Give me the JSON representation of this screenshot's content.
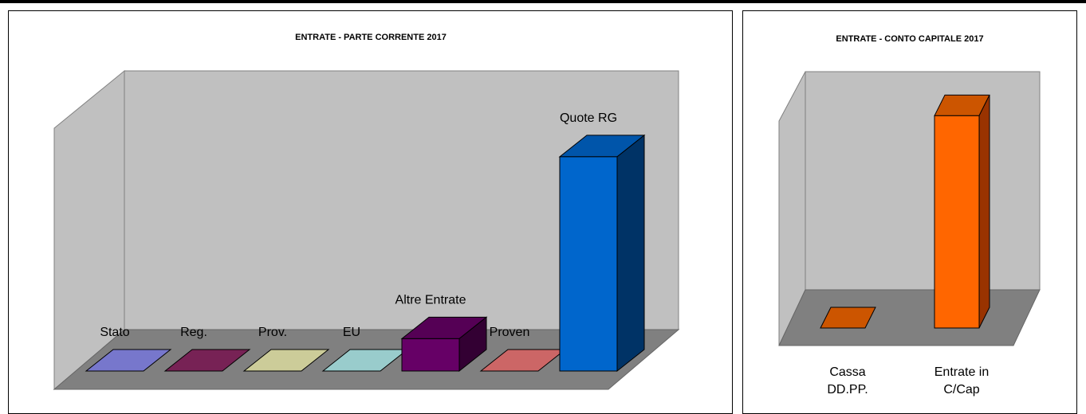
{
  "chart_data": [
    {
      "type": "bar",
      "title": "ENTRATE - PARTE CORRENTE 2017",
      "categories": [
        "Stato",
        "Reg.",
        "Prov.",
        "EU",
        "Altre Entrate",
        "Proven",
        "Quote  RG"
      ],
      "values": [
        0,
        0,
        0,
        0,
        46,
        0,
        305
      ],
      "ylim": [
        0,
        340
      ],
      "grid": false,
      "legend": "none",
      "colors": {
        "front": [
          "#7777cc",
          "#772255",
          "#cccc99",
          "#99cccc",
          "#660066",
          "#cc6666",
          "#0066cc"
        ],
        "top": [
          "#7777cc",
          "#772255",
          "#cccc99",
          "#99cccc",
          "#550055",
          "#cc6666",
          "#0055aa"
        ],
        "side": [
          "#555599",
          "#551133",
          "#999966",
          "#669999",
          "#330033",
          "#994444",
          "#003366"
        ],
        "wall": "#c0c0c0",
        "floor": "#808080"
      }
    },
    {
      "type": "bar",
      "title": "ENTRATE - CONTO CAPITALE 2017",
      "categories": [
        "Cassa DD.PP.",
        "Entrate in C/Cap"
      ],
      "category_lines": [
        [
          "Cassa",
          "DD.PP."
        ],
        [
          "Entrate in",
          "C/Cap"
        ]
      ],
      "values": [
        0,
        100
      ],
      "ylim": [
        0,
        105
      ],
      "grid": false,
      "legend": "none",
      "colors": {
        "front": [
          "#cc5500",
          "#ff6600"
        ],
        "top": [
          "#cc5500",
          "#cc5500"
        ],
        "side": [
          "#993300",
          "#993300"
        ],
        "wall": "#c0c0c0",
        "floor": "#808080"
      }
    }
  ]
}
